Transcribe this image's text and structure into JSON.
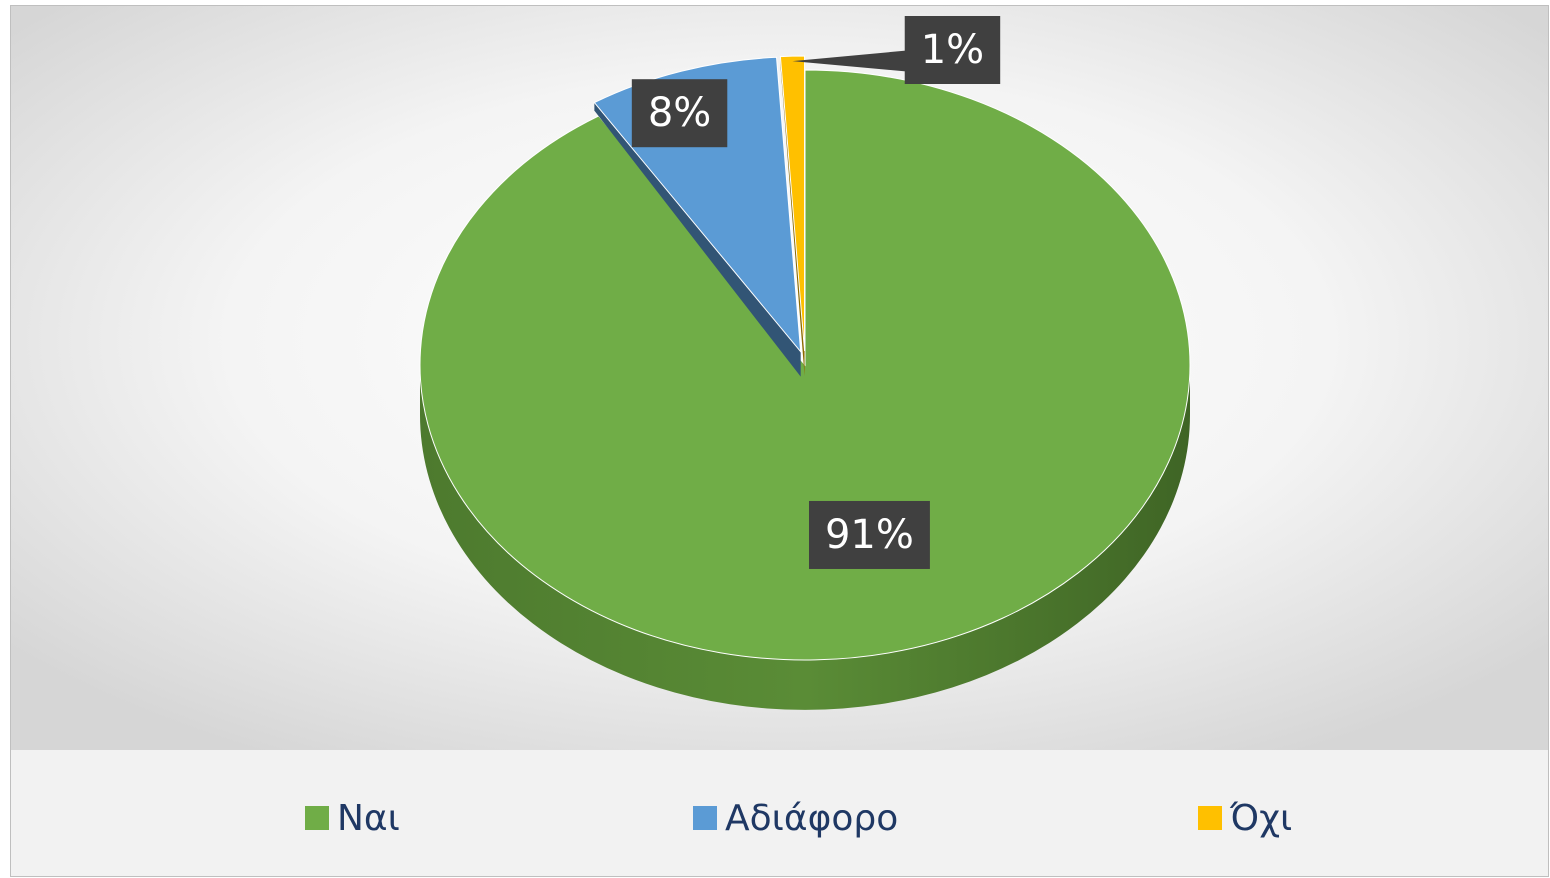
{
  "chart_data": {
    "type": "pie",
    "categories": [
      "Ναι",
      "Αδιάφορο",
      "Όχι"
    ],
    "values": [
      91,
      8,
      1
    ],
    "value_labels": [
      "91%",
      "8%",
      "1%"
    ],
    "colors": [
      "#70ad47",
      "#5b9bd5",
      "#ffc000"
    ],
    "legend": "bottom"
  }
}
